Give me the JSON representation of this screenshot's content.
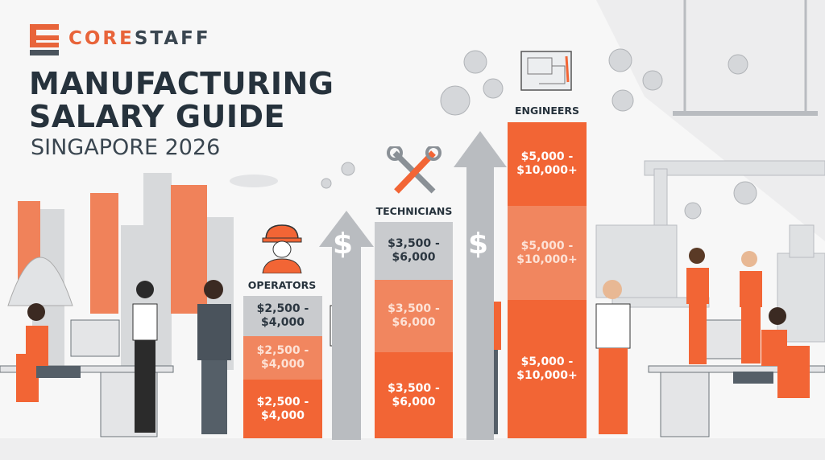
{
  "brand": {
    "name_part1": "CORE",
    "name_part2": "STAFF",
    "accent": "#e8643a",
    "dark": "#26323c"
  },
  "header": {
    "title_line1": "MANUFACTURING",
    "title_line2": "SALARY GUIDE",
    "subtitle": "SINGAPORE 2026"
  },
  "roles": [
    {
      "label": "OPERATORS",
      "icon": "hard-hat-worker-icon",
      "ranges": [
        "$2,500 -\n$4,000",
        "$2,500 -\n$4,000",
        "$2,500 -\n$4,000"
      ]
    },
    {
      "label": "TECHNICIANS",
      "icon": "crossed-wrenches-icon",
      "ranges": [
        "$3,500 -\n$6,000",
        "$3,500 -\n$6,000",
        "$3,500 -\n$6,000"
      ]
    },
    {
      "label": "ENGINEERS",
      "icon": "blueprint-icon",
      "ranges": [
        "$5,000 -\n$10,000+",
        "$5,000 -\n$10,000+",
        "$5,000 -\n$10,000+"
      ]
    }
  ],
  "arrow_symbol": "$",
  "colors": {
    "orange": "#f26535",
    "light_orange": "#f1865f",
    "gray": "#c9cbce"
  }
}
